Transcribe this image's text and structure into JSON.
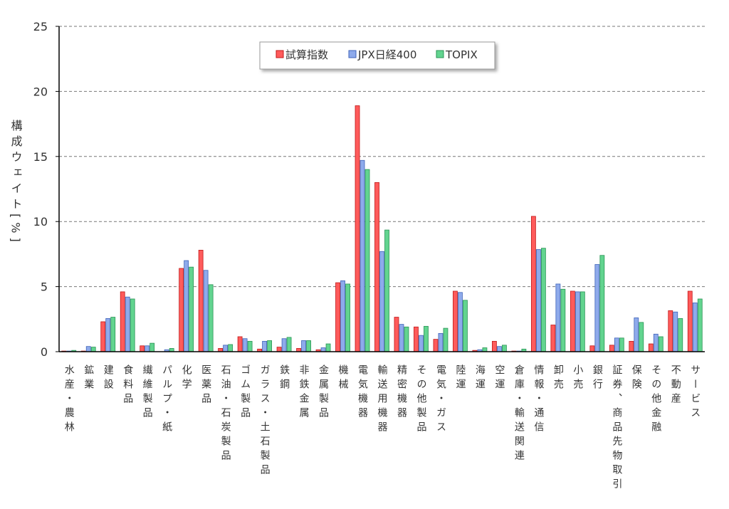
{
  "chart_data": {
    "type": "bar",
    "y_label": "構成ウェイト[%]",
    "categories": [
      "水産・農林",
      "鉱業",
      "建設",
      "食料品",
      "繊維製品",
      "パルプ・紙",
      "化学",
      "医薬品",
      "石油・石炭製品",
      "ゴム製品",
      "ガラス・土石製品",
      "鉄鋼",
      "非鉄金属",
      "金属製品",
      "機械",
      "電気機器",
      "輸送用機器",
      "精密機器",
      "その他製品",
      "電気・ガス",
      "陸運",
      "海運",
      "空運",
      "倉庫・輸送関連",
      "情報・通信",
      "卸売",
      "小売",
      "銀行",
      "証券、商品先物取引",
      "保険",
      "その他金融",
      "不動産",
      "サービス"
    ],
    "series": [
      {
        "name": "試算指数",
        "color": "#ff5b5b",
        "stroke": "#c01818",
        "values": [
          0.05,
          0.05,
          2.3,
          4.6,
          0.45,
          0,
          6.4,
          7.8,
          0.25,
          1.15,
          0.2,
          0.35,
          0.25,
          0.15,
          5.3,
          18.9,
          13.0,
          2.65,
          1.9,
          0.95,
          4.65,
          0.1,
          0.8,
          0.05,
          10.4,
          2.05,
          4.65,
          0.45,
          0.5,
          0.8,
          0.6,
          3.15,
          4.65
        ]
      },
      {
        "name": "JPX日経400",
        "color": "#8eaaeb",
        "stroke": "#3f63b8",
        "values": [
          0.05,
          0.4,
          2.55,
          4.2,
          0.45,
          0.15,
          7.0,
          6.25,
          0.5,
          1.0,
          0.8,
          1.0,
          0.85,
          0.3,
          5.45,
          14.7,
          7.7,
          2.1,
          1.25,
          1.4,
          4.55,
          0.15,
          0.4,
          0.05,
          7.85,
          5.2,
          4.6,
          6.7,
          1.05,
          2.6,
          1.35,
          3.05,
          3.75
        ]
      },
      {
        "name": "TOPIX",
        "color": "#62d48f",
        "stroke": "#2a9455",
        "values": [
          0.1,
          0.35,
          2.65,
          4.05,
          0.65,
          0.25,
          6.5,
          5.15,
          0.55,
          0.8,
          0.85,
          1.1,
          0.85,
          0.6,
          5.2,
          14.0,
          9.35,
          1.9,
          1.95,
          1.8,
          3.95,
          0.3,
          0.5,
          0.2,
          7.95,
          4.8,
          4.6,
          7.4,
          1.05,
          2.25,
          1.15,
          2.55,
          4.05
        ]
      }
    ],
    "ylim": [
      0,
      25
    ],
    "yticks": [
      0,
      5,
      10,
      15,
      20,
      25
    ],
    "grid": true
  }
}
